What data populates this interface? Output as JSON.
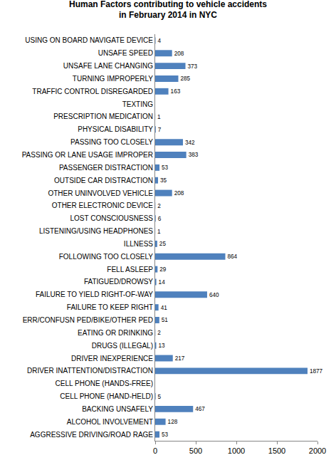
{
  "chart_data": {
    "type": "bar",
    "orientation": "horizontal",
    "title": "Human Factors contributing to vehicle accidents\nin February 2014 in NYC",
    "categories": [
      "USING ON BOARD NAVIGATE DEVICE",
      "UNSAFE SPEED",
      "UNSAFE LANE CHANGING",
      "TURNING IMPROPERLY",
      "TRAFFIC CONTROL DISREGARDED",
      "TEXTING",
      "PRESCRIPTION MEDICATION",
      "PHYSICAL DISABILITY",
      "PASSING TOO CLOSELY",
      "PASSING OR LANE USAGE IMPROPER",
      "PASSENGER DISTRACTION",
      "OUTSIDE CAR DISTRACTION",
      "OTHER UNINVOLVED VEHICLE",
      "OTHER ELECTRONIC DEVICE",
      "LOST CONSCIOUSNESS",
      "LISTENING/USING HEADPHONES",
      "ILLNESS",
      "FOLLOWING TOO CLOSELY",
      "FELL ASLEEP",
      "FATIGUED/DROWSY",
      "FAILURE TO YIELD RIGHT-OF-WAY",
      "FAILURE TO KEEP RIGHT",
      "ERR/CONFUSN PED/BIKE/OTHER PED",
      "EATING OR DRINKING",
      "DRUGS (ILLEGAL)",
      "DRIVER INEXPERIENCE",
      "DRIVER INATTENTION/DISTRACTION",
      "CELL PHONE (HANDS-FREE)",
      "CELL PHONE (HAND-HELD)",
      "BACKING UNSAFELY",
      "ALCOHOL INVOLVEMENT",
      "AGGRESSIVE DRIVING/ROAD RAGE"
    ],
    "values": [
      4,
      208,
      373,
      285,
      163,
      null,
      1,
      7,
      342,
      383,
      53,
      35,
      208,
      2,
      6,
      1,
      25,
      864,
      29,
      14,
      640,
      41,
      51,
      2,
      13,
      217,
      1877,
      null,
      5,
      467,
      128,
      53
    ],
    "color": "#4f81bd",
    "xlim": [
      0,
      2000
    ],
    "xticks": [
      0,
      500,
      1000,
      1500,
      2000
    ],
    "grid": false,
    "data_labels": true
  }
}
